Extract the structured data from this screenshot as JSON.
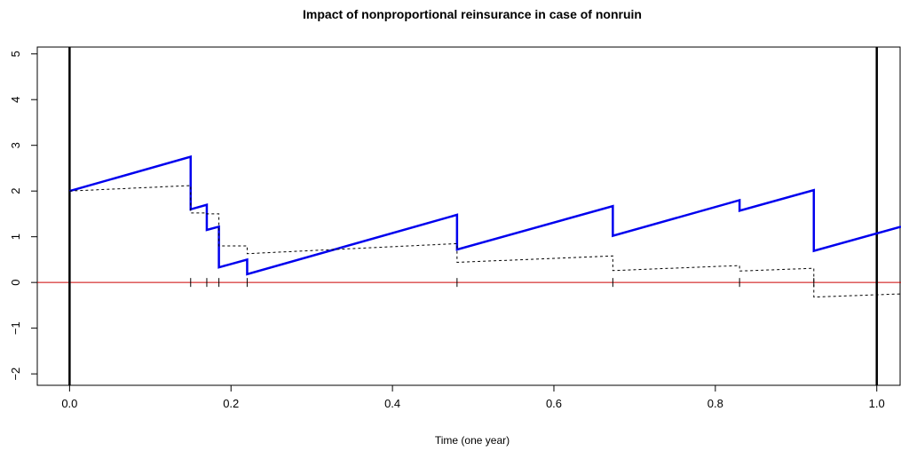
{
  "chart_data": {
    "type": "line",
    "title": "Impact of nonproportional reinsurance in case of nonruin",
    "xlabel": "Time (one year)",
    "ylabel": "",
    "xlim": [
      -0.04,
      1.03
    ],
    "ylim": [
      -2.25,
      5.15
    ],
    "x_ticks": [
      0.0,
      0.2,
      0.4,
      0.6,
      0.8,
      1.0
    ],
    "x_tick_labels": [
      "0.0",
      "0.2",
      "0.4",
      "0.6",
      "0.8",
      "1.0"
    ],
    "y_ticks": [
      -2,
      -1,
      0,
      1,
      2,
      3,
      4,
      5
    ],
    "y_tick_labels": [
      "−2",
      "−1",
      "0",
      "1",
      "2",
      "3",
      "4",
      "5"
    ],
    "grid": false,
    "colors": {
      "main": "#0000ee",
      "reference": "#cc0000",
      "dashed": "#000000",
      "boundary": "#000000"
    },
    "vertical_lines": [
      0.0,
      1.0
    ],
    "horizontal_line": 0,
    "claim_times": [
      0.15,
      0.17,
      0.185,
      0.22,
      0.48,
      0.673,
      0.83,
      0.922
    ],
    "series": [
      {
        "style": "solid",
        "points": [
          [
            0.0,
            2.0
          ],
          [
            0.15,
            2.75
          ],
          [
            0.15,
            1.6
          ],
          [
            0.17,
            1.7
          ],
          [
            0.17,
            1.15
          ],
          [
            0.185,
            1.22
          ],
          [
            0.185,
            0.33
          ],
          [
            0.22,
            0.5
          ],
          [
            0.22,
            0.18
          ],
          [
            0.48,
            1.48
          ],
          [
            0.48,
            0.72
          ],
          [
            0.673,
            1.67
          ],
          [
            0.673,
            1.02
          ],
          [
            0.83,
            1.8
          ],
          [
            0.83,
            1.57
          ],
          [
            0.922,
            2.02
          ],
          [
            0.922,
            0.69
          ],
          [
            1.03,
            1.22
          ]
        ]
      },
      {
        "style": "dashed",
        "points": [
          [
            0.0,
            2.0
          ],
          [
            0.15,
            2.12
          ],
          [
            0.15,
            1.52
          ],
          [
            0.17,
            1.52
          ],
          [
            0.17,
            1.5
          ],
          [
            0.185,
            1.5
          ],
          [
            0.185,
            0.8
          ],
          [
            0.22,
            0.8
          ],
          [
            0.22,
            0.63
          ],
          [
            0.48,
            0.85
          ],
          [
            0.48,
            0.44
          ],
          [
            0.673,
            0.58
          ],
          [
            0.673,
            0.26
          ],
          [
            0.83,
            0.37
          ],
          [
            0.83,
            0.25
          ],
          [
            0.922,
            0.31
          ],
          [
            0.922,
            -0.32
          ],
          [
            1.03,
            -0.25
          ]
        ]
      }
    ]
  }
}
